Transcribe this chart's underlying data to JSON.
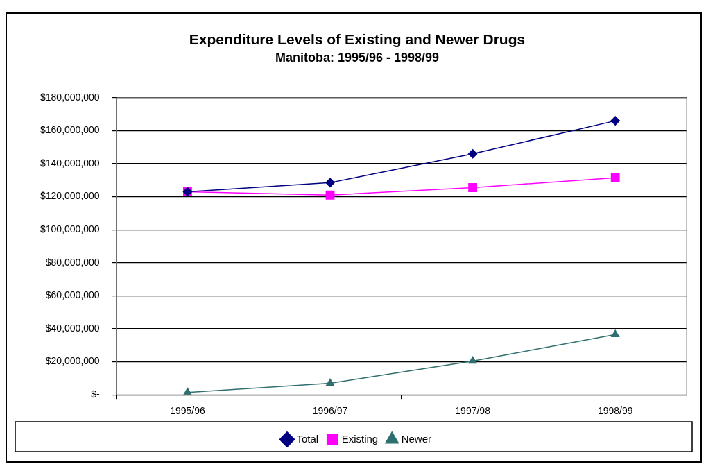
{
  "chart_data": {
    "type": "line",
    "title": "Expenditure Levels of Existing and Newer Drugs",
    "subtitle": "Manitoba: 1995/96 - 1998/99",
    "categories": [
      "1995/96",
      "1996/97",
      "1997/98",
      "1998/99"
    ],
    "series": [
      {
        "name": "Total",
        "color": "#000080",
        "marker": "diamond",
        "values": [
          123000000,
          128500000,
          146000000,
          166000000
        ]
      },
      {
        "name": "Existing",
        "color": "#ff00ff",
        "marker": "square",
        "values": [
          123000000,
          121000000,
          125500000,
          131500000
        ]
      },
      {
        "name": "Newer",
        "color": "#2f6f6f",
        "marker": "triangle",
        "values": [
          1500000,
          7000000,
          20500000,
          36500000
        ]
      }
    ],
    "ylim": [
      0,
      180000000
    ],
    "yticks": [
      {
        "value": 0,
        "label": "$-"
      },
      {
        "value": 20000000,
        "label": "$20,000,000"
      },
      {
        "value": 40000000,
        "label": "$40,000,000"
      },
      {
        "value": 60000000,
        "label": "$60,000,000"
      },
      {
        "value": 80000000,
        "label": "$80,000,000"
      },
      {
        "value": 100000000,
        "label": "$100,000,000"
      },
      {
        "value": 120000000,
        "label": "$120,000,000"
      },
      {
        "value": 140000000,
        "label": "$140,000,000"
      },
      {
        "value": 160000000,
        "label": "$160,000,000"
      },
      {
        "value": 180000000,
        "label": "$180,000,000"
      }
    ],
    "grid": "y",
    "legend": "bottom",
    "line_style": "solid"
  }
}
